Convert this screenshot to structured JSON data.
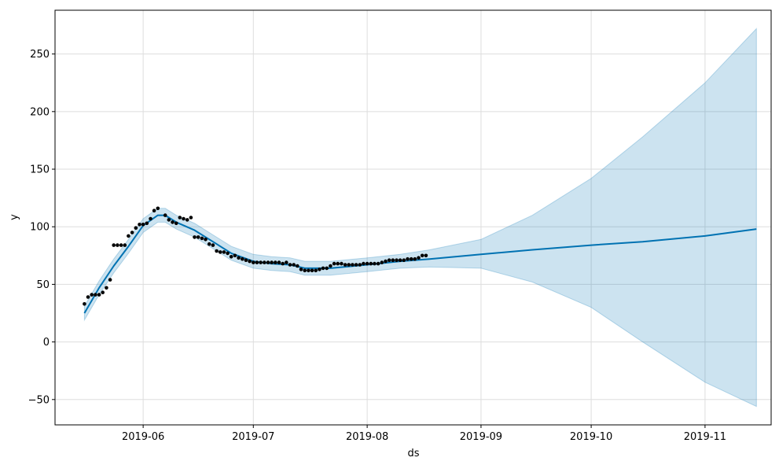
{
  "chart_data": {
    "type": "line",
    "title": "",
    "xlabel": "ds",
    "ylabel": "y",
    "xlim": [
      "2019-05-08",
      "2019-11-19"
    ],
    "ylim": [
      -72,
      288
    ],
    "grid": true,
    "x_ticks": [
      {
        "date": "2019-06-01",
        "label": "2019-06"
      },
      {
        "date": "2019-07-01",
        "label": "2019-07"
      },
      {
        "date": "2019-08-01",
        "label": "2019-08"
      },
      {
        "date": "2019-09-01",
        "label": "2019-09"
      },
      {
        "date": "2019-10-01",
        "label": "2019-10"
      },
      {
        "date": "2019-11-01",
        "label": "2019-11"
      }
    ],
    "y_ticks": [
      {
        "value": -50,
        "label": "−50"
      },
      {
        "value": 0,
        "label": "0"
      },
      {
        "value": 50,
        "label": "50"
      },
      {
        "value": 100,
        "label": "100"
      },
      {
        "value": 150,
        "label": "150"
      },
      {
        "value": 200,
        "label": "200"
      },
      {
        "value": 250,
        "label": "250"
      }
    ],
    "colors": {
      "forecast_line": "#0072b2",
      "interval_fill": "#0072b2",
      "observed_points": "#000000",
      "grid": "#dddddd"
    },
    "series": [
      {
        "kind": "forecast",
        "x": [
          "2019-05-16",
          "2019-05-20",
          "2019-05-24",
          "2019-05-28",
          "2019-06-01",
          "2019-06-05",
          "2019-06-07",
          "2019-06-10",
          "2019-06-15",
          "2019-06-20",
          "2019-06-25",
          "2019-07-01",
          "2019-07-06",
          "2019-07-11",
          "2019-07-15",
          "2019-07-22",
          "2019-08-01",
          "2019-08-10",
          "2019-08-18",
          "2019-09-01",
          "2019-09-15",
          "2019-10-01",
          "2019-10-15",
          "2019-11-01",
          "2019-11-15"
        ],
        "y": [
          25,
          47,
          66,
          83,
          101,
          110,
          110,
          104,
          97,
          87,
          77,
          70,
          68,
          67,
          64,
          64,
          67,
          70,
          72,
          76,
          80,
          84,
          87,
          92,
          98
        ]
      },
      {
        "kind": "interval_upper",
        "x": [
          "2019-05-16",
          "2019-05-20",
          "2019-05-24",
          "2019-05-28",
          "2019-06-01",
          "2019-06-05",
          "2019-06-07",
          "2019-06-10",
          "2019-06-15",
          "2019-06-20",
          "2019-06-25",
          "2019-07-01",
          "2019-07-06",
          "2019-07-11",
          "2019-07-15",
          "2019-07-22",
          "2019-08-01",
          "2019-08-10",
          "2019-08-18",
          "2019-09-01",
          "2019-09-15",
          "2019-10-01",
          "2019-10-15",
          "2019-11-01",
          "2019-11-15"
        ],
        "y": [
          31,
          53,
          72,
          89,
          107,
          116,
          116,
          110,
          103,
          93,
          83,
          76,
          74,
          73,
          70,
          70,
          73,
          76,
          80,
          89,
          110,
          142,
          178,
          225,
          272
        ]
      },
      {
        "kind": "interval_lower",
        "x": [
          "2019-05-16",
          "2019-05-20",
          "2019-05-24",
          "2019-05-28",
          "2019-06-01",
          "2019-06-05",
          "2019-06-07",
          "2019-06-10",
          "2019-06-15",
          "2019-06-20",
          "2019-06-25",
          "2019-07-01",
          "2019-07-06",
          "2019-07-11",
          "2019-07-15",
          "2019-07-22",
          "2019-08-01",
          "2019-08-10",
          "2019-08-18",
          "2019-09-01",
          "2019-09-15",
          "2019-10-01",
          "2019-10-15",
          "2019-11-01",
          "2019-11-15"
        ],
        "y": [
          19,
          41,
          60,
          77,
          95,
          104,
          104,
          98,
          91,
          81,
          71,
          64,
          62,
          61,
          58,
          58,
          61,
          64,
          65,
          64,
          52,
          30,
          0,
          -35,
          -56
        ]
      },
      {
        "kind": "observed",
        "x": [
          "2019-05-16",
          "2019-05-17",
          "2019-05-18",
          "2019-05-19",
          "2019-05-20",
          "2019-05-21",
          "2019-05-22",
          "2019-05-23",
          "2019-05-24",
          "2019-05-25",
          "2019-05-26",
          "2019-05-27",
          "2019-05-28",
          "2019-05-29",
          "2019-05-30",
          "2019-05-31",
          "2019-06-01",
          "2019-06-02",
          "2019-06-03",
          "2019-06-04",
          "2019-06-05",
          "2019-06-07",
          "2019-06-08",
          "2019-06-09",
          "2019-06-10",
          "2019-06-11",
          "2019-06-12",
          "2019-06-13",
          "2019-06-14",
          "2019-06-15",
          "2019-06-16",
          "2019-06-17",
          "2019-06-18",
          "2019-06-19",
          "2019-06-20",
          "2019-06-21",
          "2019-06-22",
          "2019-06-23",
          "2019-06-24",
          "2019-06-25",
          "2019-06-26",
          "2019-06-27",
          "2019-06-28",
          "2019-06-29",
          "2019-06-30",
          "2019-07-01",
          "2019-07-02",
          "2019-07-03",
          "2019-07-04",
          "2019-07-05",
          "2019-07-06",
          "2019-07-07",
          "2019-07-08",
          "2019-07-09",
          "2019-07-10",
          "2019-07-11",
          "2019-07-12",
          "2019-07-13",
          "2019-07-14",
          "2019-07-15",
          "2019-07-16",
          "2019-07-17",
          "2019-07-18",
          "2019-07-19",
          "2019-07-20",
          "2019-07-21",
          "2019-07-22",
          "2019-07-23",
          "2019-07-24",
          "2019-07-25",
          "2019-07-26",
          "2019-07-27",
          "2019-07-28",
          "2019-07-29",
          "2019-07-30",
          "2019-07-31",
          "2019-08-01",
          "2019-08-02",
          "2019-08-03",
          "2019-08-04",
          "2019-08-05",
          "2019-08-06",
          "2019-08-07",
          "2019-08-08",
          "2019-08-09",
          "2019-08-10",
          "2019-08-11",
          "2019-08-12",
          "2019-08-13",
          "2019-08-14",
          "2019-08-15",
          "2019-08-16",
          "2019-08-17"
        ],
        "y": [
          33,
          39,
          41,
          41,
          41,
          43,
          47,
          54,
          84,
          84,
          84,
          84,
          92,
          95,
          99,
          102,
          102,
          103,
          107,
          114,
          116,
          110,
          106,
          104,
          103,
          108,
          107,
          106,
          108,
          91,
          91,
          90,
          89,
          85,
          84,
          79,
          78,
          78,
          77,
          74,
          75,
          73,
          72,
          71,
          70,
          69,
          69,
          69,
          69,
          69,
          69,
          69,
          69,
          68,
          69,
          67,
          67,
          66,
          63,
          62,
          62,
          62,
          62,
          63,
          64,
          64,
          66,
          68,
          68,
          68,
          67,
          67,
          67,
          67,
          67,
          68,
          68,
          68,
          68,
          68,
          69,
          70,
          71,
          71,
          71,
          71,
          71,
          72,
          72,
          72,
          73,
          75,
          75
        ]
      }
    ]
  }
}
